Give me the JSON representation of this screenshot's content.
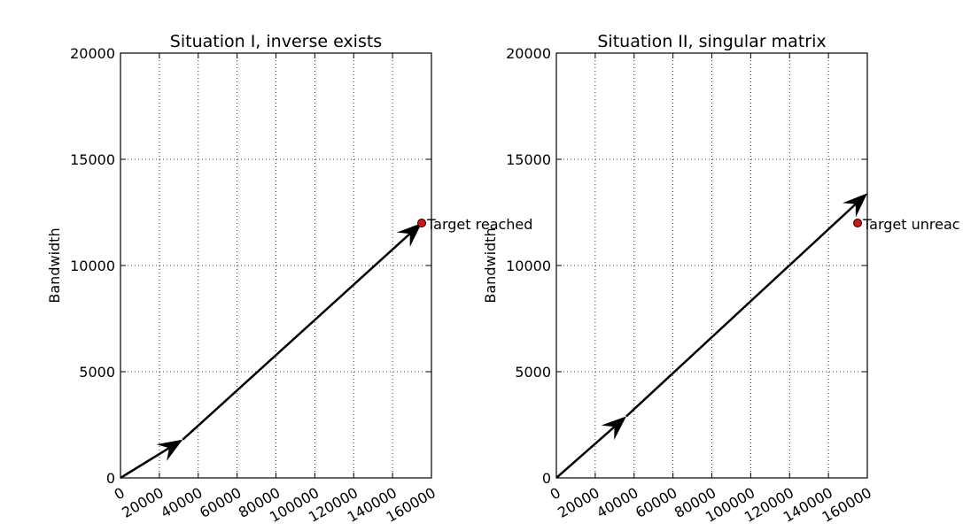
{
  "chart_data": [
    {
      "type": "line",
      "title": "Situation I, inverse exists",
      "xlabel": "",
      "ylabel": "Bandwidth",
      "xlim": [
        0,
        160000
      ],
      "ylim": [
        0,
        20000
      ],
      "xticks": [
        "0",
        "20000",
        "40000",
        "60000",
        "80000",
        "100000",
        "120000",
        "140000",
        "160000"
      ],
      "yticks": [
        "0",
        "5000",
        "10000",
        "15000",
        "20000"
      ],
      "grid": true,
      "arrows": [
        {
          "x0": 0,
          "y0": 0,
          "x1": 32000,
          "y1": 1800
        },
        {
          "x0": 32000,
          "y0": 1800,
          "x1": 155000,
          "y1": 12000
        }
      ],
      "target": {
        "x": 155000,
        "y": 12000,
        "label": "Target reached",
        "color": "#dd1111"
      }
    },
    {
      "type": "line",
      "title": "Situation II, singular matrix",
      "xlabel": "",
      "ylabel": "Bandwidth",
      "xlim": [
        0,
        160000
      ],
      "ylim": [
        0,
        20000
      ],
      "xticks": [
        "0",
        "20000",
        "40000",
        "60000",
        "80000",
        "100000",
        "120000",
        "140000",
        "160000"
      ],
      "yticks": [
        "0",
        "5000",
        "10000",
        "15000",
        "20000"
      ],
      "grid": true,
      "arrows": [
        {
          "x0": 0,
          "y0": 0,
          "x1": 36000,
          "y1": 2900
        },
        {
          "x0": 36000,
          "y0": 2900,
          "x1": 160000,
          "y1": 13400
        }
      ],
      "target": {
        "x": 155000,
        "y": 12000,
        "label": "Target unreac",
        "color": "#dd1111"
      }
    }
  ]
}
